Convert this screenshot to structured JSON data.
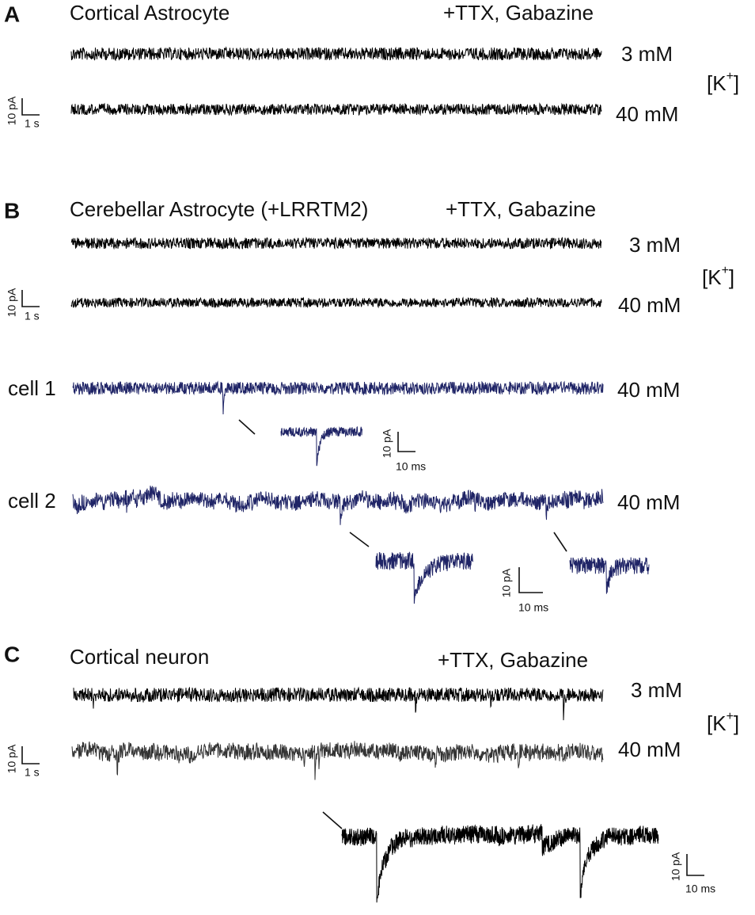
{
  "panels": [
    {
      "letter": "A",
      "title": "Cortical Astrocyte",
      "condition": "+TTX, Gabazine",
      "concentrations": [
        "3 mM",
        "40 mM"
      ],
      "ion": {
        "open": "[K",
        "sup": "+",
        "close": "]"
      },
      "scale_bar": {
        "current": "10 pA",
        "time": "1 s"
      }
    },
    {
      "letter": "B",
      "title": "Cerebellar Astrocyte (+LRRTM2)",
      "condition": "+TTX, Gabazine",
      "concentrations": [
        "3 mM",
        "40 mM"
      ],
      "ion": {
        "open": "[K",
        "sup": "+",
        "close": "]"
      },
      "scale_bar": {
        "current": "10 pA",
        "time": "1 s"
      },
      "cells": [
        {
          "label": "cell 1",
          "concentration": "40 mM"
        },
        {
          "label": "cell 2",
          "concentration": "40 mM"
        }
      ],
      "inset_scale_bars": [
        {
          "current": "10 pA",
          "time": "10 ms"
        },
        {
          "current": "10 pA",
          "time": "10 ms"
        }
      ]
    },
    {
      "letter": "C",
      "title": "Cortical neuron",
      "condition": "+TTX, Gabazine",
      "concentrations": [
        "3 mM",
        "40 mM"
      ],
      "ion": {
        "open": "[K",
        "sup": "+",
        "close": "]"
      },
      "scale_bar": {
        "current": "10 pA",
        "time": "1 s"
      },
      "inset_scale_bar": {
        "current": "10 pA",
        "time": "10 ms"
      }
    }
  ]
}
